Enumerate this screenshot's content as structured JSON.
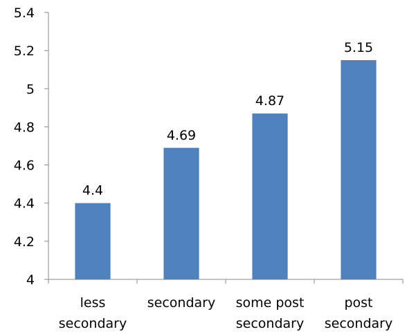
{
  "chart_data": {
    "type": "bar",
    "categories": [
      [
        "less",
        "secondary"
      ],
      [
        "secondary"
      ],
      [
        "some post",
        "secondary"
      ],
      [
        "post",
        "secondary"
      ]
    ],
    "values": [
      4.4,
      4.69,
      4.87,
      5.15
    ],
    "data_labels": [
      "4.4",
      "4.69",
      "4.87",
      "5.15"
    ],
    "title": "",
    "xlabel": "",
    "ylabel": "",
    "ylim": [
      4,
      5.4
    ],
    "yticks": [
      4,
      4.2,
      4.4,
      4.6,
      4.8,
      5,
      5.2,
      5.4
    ],
    "ytick_labels": [
      "4",
      "4.2",
      "4.4",
      "4.6",
      "4.8",
      "5",
      "5.2",
      "5.4"
    ],
    "grid": false,
    "legend": "none",
    "bar_color": "#4F81BD"
  }
}
